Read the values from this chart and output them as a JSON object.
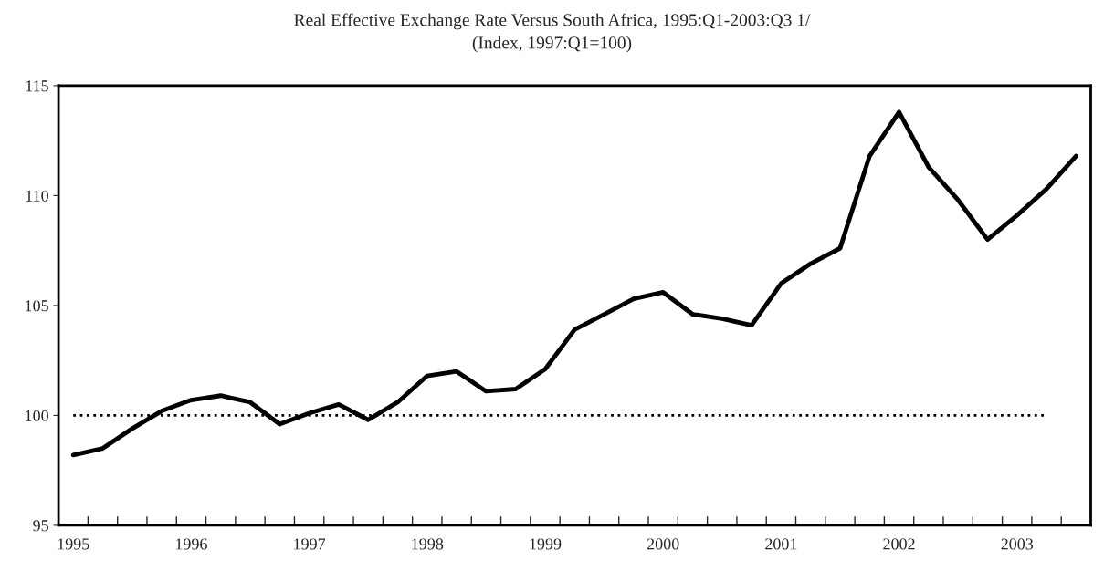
{
  "chart_data": {
    "type": "line",
    "title": "Real Effective Exchange Rate Versus South Africa, 1995:Q1-2003:Q3 1/",
    "subtitle": "(Index, 1997:Q1=100)",
    "categories": [
      "1995",
      null,
      null,
      null,
      "1996",
      null,
      null,
      null,
      "1997",
      null,
      null,
      null,
      "1998",
      null,
      null,
      null,
      "1999",
      null,
      null,
      null,
      "2000",
      null,
      null,
      null,
      "2001",
      null,
      null,
      null,
      "2002",
      null,
      null,
      null,
      "2003",
      null,
      null
    ],
    "series": [
      {
        "color": "#000000",
        "values": [
          98.2,
          98.5,
          99.4,
          100.2,
          100.7,
          100.9,
          100.6,
          99.6,
          100.1,
          100.5,
          99.8,
          100.6,
          101.8,
          102.0,
          101.1,
          101.2,
          102.1,
          103.9,
          104.6,
          105.3,
          105.6,
          104.6,
          104.4,
          104.1,
          106.0,
          106.9,
          107.6,
          111.8,
          113.8,
          111.3,
          109.8,
          108.0,
          109.1,
          110.3,
          111.8
        ]
      }
    ],
    "ylim": [
      95,
      115
    ],
    "yticks": [
      95,
      100,
      105,
      110,
      115
    ],
    "ref_lines": [
      {
        "axis": "y",
        "value": 100,
        "color": "#000000",
        "line_style": "dotted"
      }
    ],
    "grid": false,
    "legend": false,
    "marker": "none",
    "line_style": "solid"
  }
}
